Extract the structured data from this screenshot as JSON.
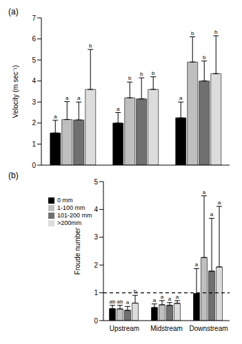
{
  "chart_data": [
    {
      "type": "bar",
      "title": "(a)",
      "y_label": "Velocity (m sec⁻¹)",
      "categories": [
        "Upstream",
        "Midstream",
        "Downstream"
      ],
      "ylim": [
        0,
        7
      ],
      "yticks": [
        0,
        1,
        2,
        3,
        4,
        5,
        6,
        7
      ],
      "grid": false,
      "tick_labels": "y",
      "series": [
        {
          "name": "0 mm",
          "color": "#000000",
          "values": [
            1.53,
            2.0,
            2.25
          ],
          "errors": [
            0.6,
            0.5,
            0.75
          ],
          "letters": [
            "a",
            "a",
            "a"
          ]
        },
        {
          "name": "1-100 mm",
          "color": "#bfbfbf",
          "values": [
            2.17,
            3.2,
            4.9
          ],
          "errors": [
            0.85,
            0.75,
            1.2
          ],
          "letters": [
            "a",
            "b",
            "b"
          ]
        },
        {
          "name": "101-200 mm",
          "color": "#707070",
          "values": [
            2.15,
            3.15,
            4.0
          ],
          "errors": [
            0.85,
            1.0,
            0.95
          ],
          "letters": [
            "a",
            "b",
            "b"
          ]
        },
        {
          "name": ">200mm",
          "color": "#dcdcdc",
          "values": [
            3.6,
            3.6,
            4.35
          ],
          "errors": [
            1.9,
            0.6,
            1.8
          ],
          "letters": [
            "b",
            "b",
            "b"
          ]
        }
      ]
    },
    {
      "type": "bar",
      "title": "(b)",
      "y_label": "Froude number",
      "categories": [
        "Upstream",
        "Midstream",
        "Downstream"
      ],
      "ylim": [
        0,
        5
      ],
      "yticks": [
        0,
        1,
        2,
        3,
        4,
        5
      ],
      "grid": false,
      "legend": "upper left",
      "reference_line": 1,
      "series": [
        {
          "name": "0 mm",
          "color": "#000000",
          "values": [
            0.43,
            0.47,
            0.97
          ],
          "errors": [
            0.12,
            0.13,
            0.9
          ],
          "letters": [
            "ab",
            "a",
            "a"
          ]
        },
        {
          "name": "1-100 mm",
          "color": "#bfbfbf",
          "values": [
            0.42,
            0.57,
            2.27
          ],
          "errors": [
            0.13,
            0.15,
            2.22
          ],
          "letters": [
            "ab",
            "a",
            "a"
          ]
        },
        {
          "name": "101-200 mm",
          "color": "#707070",
          "values": [
            0.37,
            0.55,
            1.78
          ],
          "errors": [
            0.14,
            0.1,
            1.9
          ],
          "letters": [
            "a",
            "a",
            "a"
          ]
        },
        {
          "name": ">200mm",
          "color": "#dcdcdc",
          "values": [
            0.63,
            0.62,
            1.93
          ],
          "errors": [
            0.28,
            0.1,
            2.18
          ],
          "letters": [
            "b",
            "a",
            "a"
          ]
        }
      ]
    }
  ]
}
